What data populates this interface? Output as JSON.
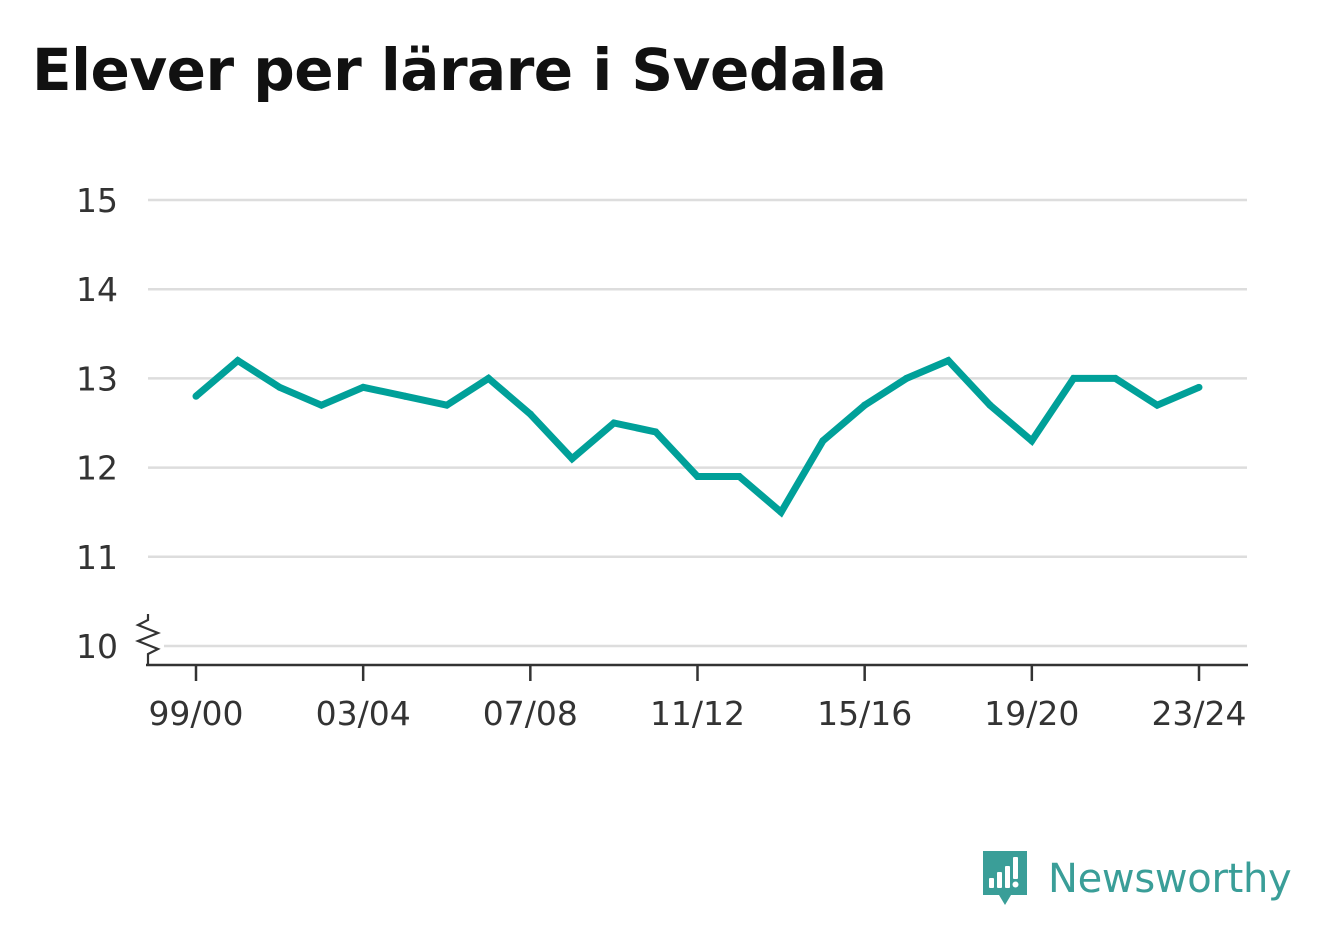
{
  "title": "Elever per lärare i Svedala",
  "brand": {
    "name": "Newsworthy",
    "icon": "newsworthy-logo-icon"
  },
  "colors": {
    "line": "#00a099",
    "grid": "#dddddd",
    "axis": "#333333",
    "brand": "#3a9e98"
  },
  "chart_data": {
    "type": "line",
    "title": "Elever per lärare i Svedala",
    "xlabel": "",
    "ylabel": "",
    "ylim": [
      10,
      15
    ],
    "y_ticks": [
      10,
      11,
      12,
      13,
      14,
      15
    ],
    "y_axis_break": true,
    "grid": true,
    "x": [
      "99/00",
      "00/01",
      "01/02",
      "02/03",
      "03/04",
      "04/05",
      "05/06",
      "06/07",
      "07/08",
      "08/09",
      "09/10",
      "10/11",
      "11/12",
      "12/13",
      "13/14",
      "14/15",
      "15/16",
      "16/17",
      "17/18",
      "18/19",
      "19/20",
      "20/21",
      "21/22",
      "22/23",
      "23/24"
    ],
    "x_tick_labels": [
      "99/00",
      "03/04",
      "07/08",
      "11/12",
      "15/16",
      "19/20",
      "23/24"
    ],
    "series": [
      {
        "values": [
          12.8,
          13.2,
          12.9,
          12.7,
          12.9,
          12.8,
          12.7,
          13.0,
          12.6,
          12.1,
          12.5,
          12.4,
          11.9,
          11.9,
          11.5,
          12.3,
          12.7,
          13.0,
          13.2,
          12.7,
          12.3,
          13.0,
          13.0,
          12.7,
          12.9
        ]
      }
    ]
  }
}
